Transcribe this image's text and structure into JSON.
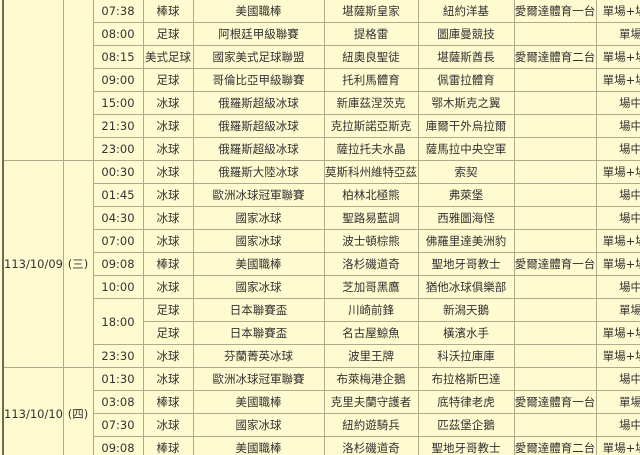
{
  "groups": [
    {
      "date": "",
      "weekday": "",
      "rows": [
        {
          "time": "07:38",
          "sport": "棒球",
          "league": "美國職棒",
          "home": "堪薩斯皇家",
          "away": "紐約洋基",
          "channel": "愛爾達體育一台",
          "bet": "單場+場中"
        },
        {
          "time": "08:00",
          "sport": "足球",
          "league": "阿根廷甲級聯賽",
          "home": "提格雷",
          "away": "圖庫曼競技",
          "channel": "",
          "bet": "單場"
        },
        {
          "time": "08:15",
          "sport": "美式足球",
          "league": "國家美式足球聯盟",
          "home": "紐奧良聖徒",
          "away": "堪薩斯酋長",
          "channel": "愛爾達體育二台",
          "bet": "單場+場中"
        },
        {
          "time": "09:00",
          "sport": "足球",
          "league": "哥倫比亞甲級聯賽",
          "home": "托利馬體育",
          "away": "佩雷拉體育",
          "channel": "",
          "bet": "單場+場中"
        },
        {
          "time": "15:00",
          "sport": "冰球",
          "league": "俄羅斯超級冰球",
          "home": "新庫茲涅茨克",
          "away": "鄂木斯克之翼",
          "channel": "",
          "bet": "場中"
        },
        {
          "time": "21:30",
          "sport": "冰球",
          "league": "俄羅斯超級冰球",
          "home": "克拉斯諾亞斯克",
          "away": "庫爾干外烏拉爾",
          "channel": "",
          "bet": "場中"
        },
        {
          "time": "23:00",
          "sport": "冰球",
          "league": "俄羅斯超級冰球",
          "home": "薩拉托夫水晶",
          "away": "薩馬拉中央空軍",
          "channel": "",
          "bet": "場中"
        }
      ]
    },
    {
      "date": "113/10/09",
      "weekday": "(三)",
      "rows": [
        {
          "time": "00:30",
          "sport": "冰球",
          "league": "俄羅斯大陸冰球",
          "home": "莫斯科州維特亞茲",
          "away": "索契",
          "channel": "",
          "bet": "單場+場中"
        },
        {
          "time": "01:45",
          "sport": "冰球",
          "league": "歐洲冰球冠軍聯賽",
          "home": "柏林北極熊",
          "away": "弗萊堡",
          "channel": "",
          "bet": "場中"
        },
        {
          "time": "04:30",
          "sport": "冰球",
          "league": "國家冰球",
          "home": "聖路易藍調",
          "away": "西雅圖海怪",
          "channel": "",
          "bet": "場中"
        },
        {
          "time": "07:00",
          "sport": "冰球",
          "league": "國家冰球",
          "home": "波士頓棕熊",
          "away": "佛羅里達美洲豹",
          "channel": "",
          "bet": "單場+場中"
        },
        {
          "time": "09:08",
          "sport": "棒球",
          "league": "美國職棒",
          "home": "洛杉磯道奇",
          "away": "聖地牙哥教士",
          "channel": "愛爾達體育一台",
          "bet": "單場+場中"
        },
        {
          "time": "10:00",
          "sport": "冰球",
          "league": "國家冰球",
          "home": "芝加哥黑鷹",
          "away": "猶他冰球俱樂部",
          "channel": "",
          "bet": "場中"
        },
        {
          "time": "18:00",
          "span": 2,
          "sport": "足球",
          "league": "日本聯賽盃",
          "home": "川崎前鋒",
          "away": "新潟天鵝",
          "channel": "",
          "bet": "單場"
        },
        {
          "time": null,
          "sport": "足球",
          "league": "日本聯賽盃",
          "home": "名古屋鯨魚",
          "away": "橫濱水手",
          "channel": "",
          "bet": "單場+場中"
        },
        {
          "time": "23:30",
          "sport": "冰球",
          "league": "芬蘭菁英冰球",
          "home": "波里王牌",
          "away": "科沃拉庫庫",
          "channel": "",
          "bet": "單場+場中"
        }
      ]
    },
    {
      "date": "113/10/10",
      "weekday": "(四)",
      "rows": [
        {
          "time": "01:30",
          "sport": "冰球",
          "league": "歐洲冰球冠軍聯賽",
          "home": "布萊梅港企鵝",
          "away": "布拉格斯巴達",
          "channel": "",
          "bet": "場中"
        },
        {
          "time": "03:08",
          "sport": "棒球",
          "league": "美國職棒",
          "home": "克里夫蘭守護者",
          "away": "底特律老虎",
          "channel": "愛爾達體育一台",
          "bet": "單場"
        },
        {
          "time": "07:30",
          "sport": "冰球",
          "league": "國家冰球",
          "home": "紐約遊騎兵",
          "away": "匹茲堡企鵝",
          "channel": "",
          "bet": "場中"
        },
        {
          "time": "09:08",
          "sport": "棒球",
          "league": "美國職棒",
          "home": "洛杉磯道奇",
          "away": "聖地牙哥教士",
          "channel": "愛爾達體育二台",
          "bet": "單場+場中"
        }
      ]
    }
  ]
}
